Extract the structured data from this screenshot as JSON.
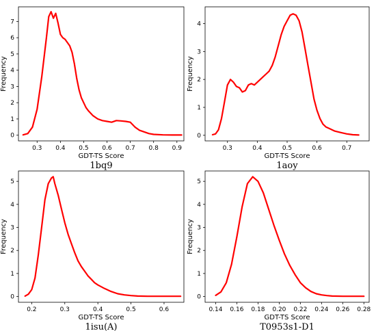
{
  "chart_data": [
    {
      "type": "line",
      "caption": "1bq9",
      "xlabel": "GDT-TS Score",
      "ylabel": "Frequency",
      "xlim": [
        0.22,
        0.93
      ],
      "ylim": [
        -0.35,
        7.9
      ],
      "xticks": [
        0.3,
        0.4,
        0.5,
        0.6,
        0.7,
        0.8,
        0.9
      ],
      "xtick_labels": [
        "0.3",
        "0.4",
        "0.5",
        "0.6",
        "0.7",
        "0.8",
        "0.9"
      ],
      "yticks": [
        0,
        1,
        2,
        3,
        4,
        5,
        6,
        7
      ],
      "ytick_labels": [
        "0",
        "1",
        "2",
        "3",
        "4",
        "5",
        "6",
        "7"
      ],
      "color": "#ff0000",
      "series": [
        {
          "x": [
            0.24,
            0.26,
            0.28,
            0.3,
            0.32,
            0.34,
            0.35,
            0.36,
            0.37,
            0.38,
            0.39,
            0.4,
            0.41,
            0.42,
            0.43,
            0.44,
            0.45,
            0.46,
            0.47,
            0.48,
            0.49,
            0.5,
            0.51,
            0.52,
            0.54,
            0.56,
            0.58,
            0.6,
            0.62,
            0.64,
            0.66,
            0.68,
            0.7,
            0.72,
            0.74,
            0.76,
            0.78,
            0.8,
            0.84,
            0.88,
            0.92
          ],
          "y": [
            0.02,
            0.1,
            0.5,
            1.6,
            3.6,
            6.0,
            7.3,
            7.6,
            7.2,
            7.5,
            6.9,
            6.2,
            6.0,
            5.9,
            5.7,
            5.5,
            5.1,
            4.4,
            3.5,
            2.8,
            2.3,
            2.0,
            1.7,
            1.5,
            1.2,
            1.0,
            0.9,
            0.85,
            0.8,
            0.9,
            0.88,
            0.85,
            0.8,
            0.5,
            0.3,
            0.2,
            0.1,
            0.05,
            0.02,
            0.01,
            0.01
          ]
        }
      ]
    },
    {
      "type": "line",
      "caption": "1aoy",
      "xlabel": "GDT-TS Score",
      "ylabel": "Frequency",
      "xlim": [
        0.225,
        0.775
      ],
      "ylim": [
        -0.2,
        4.6
      ],
      "xticks": [
        0.3,
        0.4,
        0.5,
        0.6,
        0.7
      ],
      "xtick_labels": [
        "0.3",
        "0.4",
        "0.5",
        "0.6",
        "0.7"
      ],
      "yticks": [
        0,
        1,
        2,
        3,
        4
      ],
      "ytick_labels": [
        "0",
        "1",
        "2",
        "3",
        "4"
      ],
      "color": "#ff0000",
      "series": [
        {
          "x": [
            0.25,
            0.26,
            0.27,
            0.28,
            0.29,
            0.3,
            0.31,
            0.32,
            0.33,
            0.34,
            0.35,
            0.36,
            0.37,
            0.38,
            0.39,
            0.4,
            0.41,
            0.42,
            0.43,
            0.44,
            0.45,
            0.46,
            0.47,
            0.48,
            0.49,
            0.5,
            0.51,
            0.52,
            0.53,
            0.54,
            0.55,
            0.56,
            0.57,
            0.58,
            0.59,
            0.6,
            0.61,
            0.62,
            0.63,
            0.64,
            0.66,
            0.68,
            0.7,
            0.72,
            0.74
          ],
          "y": [
            0.02,
            0.05,
            0.2,
            0.6,
            1.2,
            1.8,
            2.0,
            1.9,
            1.75,
            1.7,
            1.55,
            1.6,
            1.8,
            1.85,
            1.8,
            1.9,
            2.0,
            2.1,
            2.2,
            2.3,
            2.5,
            2.8,
            3.2,
            3.6,
            3.9,
            4.1,
            4.3,
            4.35,
            4.3,
            4.1,
            3.7,
            3.1,
            2.5,
            1.9,
            1.3,
            0.9,
            0.6,
            0.4,
            0.3,
            0.25,
            0.15,
            0.1,
            0.05,
            0.02,
            0.01
          ]
        }
      ]
    },
    {
      "type": "line",
      "caption": "1isu(A)",
      "xlabel": "GDT-TS Score",
      "ylabel": "Frequency",
      "xlim": [
        0.16,
        0.66
      ],
      "ylim": [
        -0.25,
        5.45
      ],
      "xticks": [
        0.2,
        0.3,
        0.4,
        0.5,
        0.6
      ],
      "xtick_labels": [
        "0.2",
        "0.3",
        "0.4",
        "0.5",
        "0.6"
      ],
      "yticks": [
        0,
        1,
        2,
        3,
        4,
        5
      ],
      "ytick_labels": [
        "0",
        "1",
        "2",
        "3",
        "4",
        "5"
      ],
      "color": "#ff0000",
      "series": [
        {
          "x": [
            0.18,
            0.19,
            0.2,
            0.21,
            0.22,
            0.23,
            0.24,
            0.25,
            0.26,
            0.265,
            0.27,
            0.28,
            0.29,
            0.3,
            0.31,
            0.32,
            0.33,
            0.34,
            0.35,
            0.36,
            0.37,
            0.38,
            0.39,
            0.4,
            0.42,
            0.44,
            0.46,
            0.48,
            0.5,
            0.52,
            0.55,
            0.6,
            0.65
          ],
          "y": [
            0.02,
            0.1,
            0.3,
            0.8,
            1.8,
            3.0,
            4.2,
            4.9,
            5.15,
            5.2,
            4.9,
            4.4,
            3.8,
            3.2,
            2.7,
            2.3,
            1.9,
            1.55,
            1.3,
            1.1,
            0.9,
            0.75,
            0.6,
            0.5,
            0.35,
            0.22,
            0.12,
            0.07,
            0.04,
            0.02,
            0.01,
            0.01,
            0.01
          ]
        }
      ]
    },
    {
      "type": "line",
      "caption": "T0953s1-D1",
      "xlabel": "GDT-TS Score",
      "ylabel": "Frequency",
      "xlim": [
        0.13,
        0.285
      ],
      "ylim": [
        -0.25,
        5.45
      ],
      "xticks": [
        0.14,
        0.16,
        0.18,
        0.2,
        0.22,
        0.24,
        0.26,
        0.28
      ],
      "xtick_labels": [
        "0.14",
        "0.16",
        "0.18",
        "0.20",
        "0.22",
        "0.24",
        "0.26",
        "0.28"
      ],
      "yticks": [
        0,
        1,
        2,
        3,
        4,
        5
      ],
      "ytick_labels": [
        "0",
        "1",
        "2",
        "3",
        "4",
        "5"
      ],
      "color": "#ff0000",
      "series": [
        {
          "x": [
            0.14,
            0.145,
            0.15,
            0.155,
            0.16,
            0.165,
            0.17,
            0.175,
            0.18,
            0.185,
            0.19,
            0.195,
            0.2,
            0.205,
            0.21,
            0.215,
            0.22,
            0.225,
            0.23,
            0.235,
            0.24,
            0.245,
            0.25,
            0.26,
            0.27,
            0.28
          ],
          "y": [
            0.05,
            0.2,
            0.6,
            1.4,
            2.6,
            3.9,
            4.9,
            5.2,
            5.0,
            4.5,
            3.8,
            3.1,
            2.45,
            1.85,
            1.35,
            0.95,
            0.6,
            0.38,
            0.22,
            0.12,
            0.07,
            0.04,
            0.02,
            0.01,
            0.01,
            0.01
          ]
        }
      ]
    }
  ]
}
